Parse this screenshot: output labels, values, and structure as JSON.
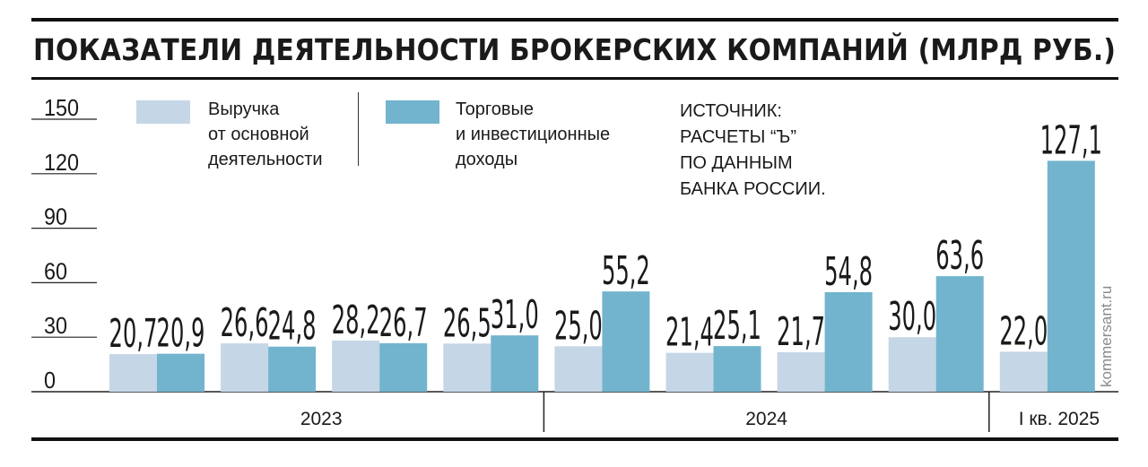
{
  "title": "ПОКАЗАТЕЛИ ДЕЯТЕЛЬНОСТИ БРОКЕРСКИХ КОМПАНИЙ (МЛРД РУБ.)",
  "legend": [
    {
      "label": "Выручка\nот основной\nдеятельности",
      "color": "#c5d6e6"
    },
    {
      "label": "Торговые\nи инвестиционные\nдоходы",
      "color": "#72b4ce"
    }
  ],
  "source": "ИСТОЧНИК:\nРАСЧЕТЫ “Ъ”\nПО ДАННЫМ\nБАНКА РОССИИ.",
  "watermark": "kommersant.ru",
  "chart_data": {
    "type": "bar",
    "categories": [
      "",
      "",
      "",
      "",
      "",
      "",
      "",
      "",
      ""
    ],
    "groups": [
      {
        "label": "2023",
        "count": 4
      },
      {
        "label": "2024",
        "count": 4
      },
      {
        "label": "I кв. 2025",
        "count": 1
      }
    ],
    "series": [
      {
        "name": "Выручка от основной деятельности",
        "color": "#c5d6e6",
        "values": [
          20.7,
          26.6,
          28.2,
          26.5,
          25.0,
          21.4,
          21.7,
          30.0,
          22.0
        ],
        "labels": [
          "20,7",
          "26,6",
          "28,2",
          "26,5",
          "25,0",
          "21,4",
          "21,7",
          "30,0",
          "22,0"
        ]
      },
      {
        "name": "Торговые и инвестиционные доходы",
        "color": "#72b4ce",
        "values": [
          20.9,
          24.8,
          26.7,
          31.0,
          55.2,
          25.1,
          54.8,
          63.6,
          127.1
        ],
        "labels": [
          "20,9",
          "24,8",
          "26,7",
          "31,0",
          "55,2",
          "25,1",
          "54,8",
          "63,6",
          "127,1"
        ]
      }
    ],
    "yticks": [
      0,
      30,
      60,
      90,
      120,
      150
    ],
    "ytick_labels": [
      "0",
      "30",
      "60",
      "90",
      "120",
      "150"
    ],
    "ylim": [
      0,
      150
    ],
    "grid": false,
    "legend_position": "top"
  }
}
